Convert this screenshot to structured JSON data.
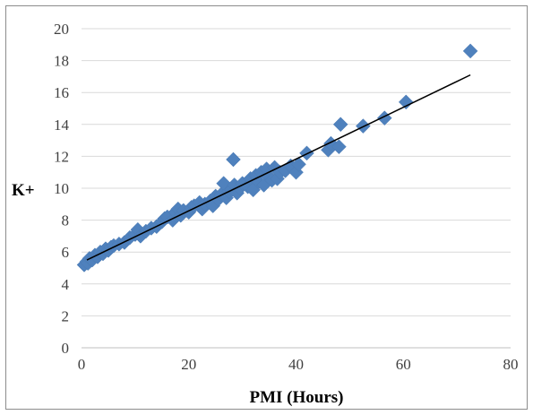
{
  "chart_data": {
    "type": "scatter",
    "title": "",
    "xlabel": "PMI (Hours)",
    "ylabel": "K+",
    "xlim": [
      0,
      80
    ],
    "ylim": [
      0,
      20
    ],
    "x_ticks": [
      0,
      20,
      40,
      60,
      80
    ],
    "y_ticks": [
      0,
      2,
      4,
      6,
      8,
      10,
      12,
      14,
      16,
      18,
      20
    ],
    "grid": "horizontal",
    "legend": "none",
    "marker": "diamond",
    "marker_color": "#4f81bd",
    "trendline": {
      "type": "linear",
      "color": "#000000",
      "points": [
        [
          1,
          5.5
        ],
        [
          72.5,
          17.1
        ]
      ]
    },
    "series": [
      {
        "points": [
          [
            0.5,
            5.2
          ],
          [
            1,
            5.4
          ],
          [
            1.2,
            5.3
          ],
          [
            1.5,
            5.6
          ],
          [
            2,
            5.5
          ],
          [
            2.5,
            5.8
          ],
          [
            3,
            5.7
          ],
          [
            3.5,
            6.0
          ],
          [
            4,
            5.9
          ],
          [
            4.5,
            6.2
          ],
          [
            5,
            6.1
          ],
          [
            5.5,
            6.3
          ],
          [
            6,
            6.4
          ],
          [
            7,
            6.5
          ],
          [
            8,
            6.6
          ],
          [
            9,
            6.9
          ],
          [
            10,
            7.1
          ],
          [
            10.5,
            7.4
          ],
          [
            11,
            7.0
          ],
          [
            12,
            7.3
          ],
          [
            13,
            7.5
          ],
          [
            14,
            7.6
          ],
          [
            15,
            7.9
          ],
          [
            15.5,
            8.1
          ],
          [
            16,
            8.2
          ],
          [
            17,
            8.0
          ],
          [
            17.5,
            8.5
          ],
          [
            18,
            8.7
          ],
          [
            18.5,
            8.3
          ],
          [
            19,
            8.6
          ],
          [
            20,
            8.5
          ],
          [
            20.5,
            8.8
          ],
          [
            21,
            8.9
          ],
          [
            22,
            9.1
          ],
          [
            22.5,
            8.7
          ],
          [
            23,
            9.0
          ],
          [
            24,
            9.2
          ],
          [
            24.5,
            8.9
          ],
          [
            25,
            9.5
          ],
          [
            25.5,
            9.3
          ],
          [
            26,
            9.6
          ],
          [
            26.5,
            10.3
          ],
          [
            27,
            9.4
          ],
          [
            27.5,
            9.8
          ],
          [
            28,
            9.9
          ],
          [
            28.3,
            11.8
          ],
          [
            28.5,
            10.2
          ],
          [
            29,
            9.7
          ],
          [
            29.5,
            10.0
          ],
          [
            30,
            10.3
          ],
          [
            31,
            10.1
          ],
          [
            31.5,
            10.6
          ],
          [
            32,
            9.9
          ],
          [
            32.5,
            10.8
          ],
          [
            33,
            10.4
          ],
          [
            33.5,
            11.0
          ],
          [
            34,
            10.2
          ],
          [
            34.5,
            11.2
          ],
          [
            35,
            10.7
          ],
          [
            35.5,
            10.5
          ],
          [
            36,
            11.3
          ],
          [
            36.5,
            10.6
          ],
          [
            37,
            11.0
          ],
          [
            38,
            11.1
          ],
          [
            39,
            11.4
          ],
          [
            40,
            11.0
          ],
          [
            40.5,
            11.5
          ],
          [
            42,
            12.2
          ],
          [
            46,
            12.4
          ],
          [
            46.5,
            12.8
          ],
          [
            48,
            12.6
          ],
          [
            48.3,
            14.0
          ],
          [
            52.5,
            13.9
          ],
          [
            56.5,
            14.4
          ],
          [
            60.5,
            15.4
          ],
          [
            72.5,
            18.6
          ]
        ]
      }
    ]
  }
}
